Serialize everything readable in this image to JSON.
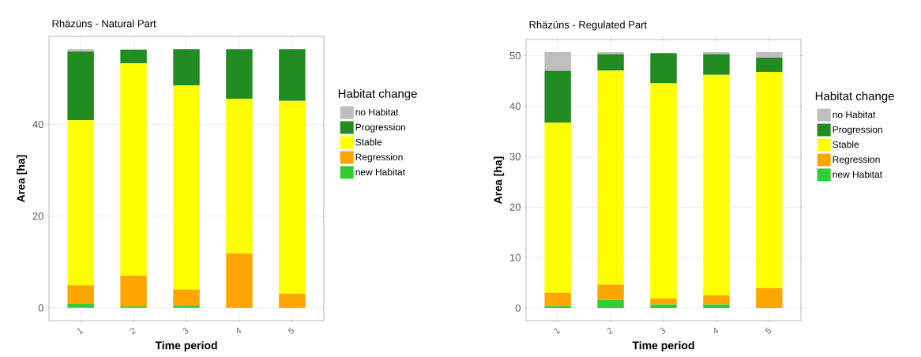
{
  "chart_data": [
    {
      "type": "bar",
      "stacked": true,
      "title": "Rhäzüns - Natural Part",
      "xlabel": "Time period",
      "ylabel": "Area [ha]",
      "legend_title": "Habitat change",
      "categories": [
        "1",
        "2",
        "3",
        "4",
        "5"
      ],
      "series": [
        {
          "name": "new Habitat",
          "color": "#32cd32",
          "values": [
            0.8,
            0.3,
            0.5,
            0.1,
            0.1
          ]
        },
        {
          "name": "Regression",
          "color": "#ffa500",
          "values": [
            4.1,
            6.7,
            3.5,
            11.8,
            3.0
          ]
        },
        {
          "name": "Stable",
          "color": "#ffff00",
          "values": [
            36.0,
            46.3,
            44.5,
            33.7,
            42.0
          ]
        },
        {
          "name": "Progression",
          "color": "#228b22",
          "values": [
            15.0,
            3.0,
            7.9,
            10.8,
            11.3
          ]
        },
        {
          "name": "no Habitat",
          "color": "#bebebe",
          "values": [
            0.5,
            null,
            0,
            0,
            0
          ]
        }
      ],
      "ylim": [
        -2.8,
        59.2
      ],
      "yticks": [
        0,
        20,
        40
      ],
      "grid": true,
      "legend": "right"
    },
    {
      "type": "bar",
      "stacked": true,
      "title": "Rhäzüns - Regulated Part",
      "xlabel": "Time period",
      "ylabel": "Area [ha]",
      "legend_title": "Habitat change",
      "categories": [
        "1",
        "2",
        "3",
        "4",
        "5"
      ],
      "series": [
        {
          "name": "new Habitat",
          "color": "#32cd32",
          "values": [
            0.4,
            1.6,
            0.7,
            0.7,
            0
          ]
        },
        {
          "name": "Regression",
          "color": "#ffa500",
          "values": [
            2.6,
            3.0,
            1.2,
            1.8,
            3.9
          ]
        },
        {
          "name": "Stable",
          "color": "#ffff00",
          "values": [
            33.7,
            42.4,
            42.6,
            43.7,
            42.9
          ]
        },
        {
          "name": "Progression",
          "color": "#228b22",
          "values": [
            10.3,
            3.3,
            6.0,
            4.1,
            2.8
          ]
        },
        {
          "name": "no Habitat",
          "color": "#bebebe",
          "values": [
            3.7,
            0.4,
            null,
            0.4,
            1.1
          ]
        }
      ],
      "ylim": [
        -2.5,
        53.2
      ],
      "yticks": [
        0,
        10,
        20,
        30,
        40,
        50
      ],
      "grid": true,
      "legend": "right"
    }
  ]
}
